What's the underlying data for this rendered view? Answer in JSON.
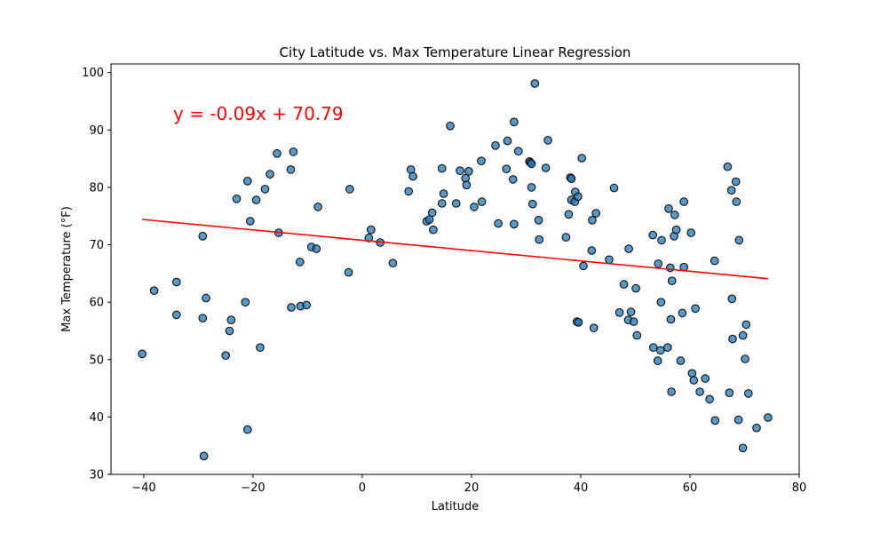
{
  "chart_data": {
    "type": "scatter",
    "title": "City Latitude vs. Max Temperature Linear Regression",
    "xlabel": "Latitude",
    "ylabel": "Max Temperature (°F)",
    "xlim": [
      -46,
      80
    ],
    "ylim": [
      30,
      101.5
    ],
    "xticks": [
      -40,
      -20,
      0,
      20,
      40,
      60,
      80
    ],
    "yticks": [
      30,
      40,
      50,
      60,
      70,
      80,
      90,
      100
    ],
    "grid": false,
    "point_color": "#1f77b4",
    "line_color": "#ff0000",
    "regression": {
      "slope": -0.09,
      "intercept": 70.79,
      "x_range": [
        -40.3,
        74.3
      ]
    },
    "annotation": "y = -0.09x + 70.79",
    "points": [
      [
        -40.3,
        51
      ],
      [
        -38.1,
        62
      ],
      [
        -34.0,
        63.5
      ],
      [
        -34.0,
        57.8
      ],
      [
        -29.2,
        71.5
      ],
      [
        -29.2,
        57.2
      ],
      [
        -28.6,
        60.7
      ],
      [
        -29.0,
        33.2
      ],
      [
        -25.0,
        50.7
      ],
      [
        -24.3,
        55
      ],
      [
        -24.0,
        56.9
      ],
      [
        -23.0,
        78
      ],
      [
        -21.0,
        81.1
      ],
      [
        -21.4,
        60
      ],
      [
        -21.0,
        37.8
      ],
      [
        -20.5,
        74.1
      ],
      [
        -19.4,
        77.8
      ],
      [
        -18.7,
        52.1
      ],
      [
        -17.8,
        79.7
      ],
      [
        -16.9,
        82.3
      ],
      [
        -15.6,
        85.9
      ],
      [
        -15.3,
        72.1
      ],
      [
        -13.1,
        83.1
      ],
      [
        -12.6,
        86.2
      ],
      [
        -13.0,
        59.1
      ],
      [
        -11.4,
        67
      ],
      [
        -11.3,
        59.3
      ],
      [
        -10.2,
        59.5
      ],
      [
        -9.3,
        69.6
      ],
      [
        -8.4,
        69.3
      ],
      [
        -8.1,
        76.6
      ],
      [
        -2.3,
        79.7
      ],
      [
        -2.5,
        65.2
      ],
      [
        1.2,
        71.2
      ],
      [
        1.6,
        72.6
      ],
      [
        3.3,
        70.4
      ],
      [
        5.6,
        66.8
      ],
      [
        8.5,
        79.3
      ],
      [
        8.9,
        83.1
      ],
      [
        9.3,
        81.9
      ],
      [
        11.8,
        74.1
      ],
      [
        12.3,
        74.4
      ],
      [
        12.8,
        75.6
      ],
      [
        13.0,
        72.6
      ],
      [
        14.6,
        77.2
      ],
      [
        14.6,
        83.3
      ],
      [
        14.9,
        78.9
      ],
      [
        16.1,
        90.7
      ],
      [
        17.2,
        77.2
      ],
      [
        17.9,
        82.9
      ],
      [
        18.9,
        81.6
      ],
      [
        19.1,
        80.4
      ],
      [
        19.5,
        82.8
      ],
      [
        20.5,
        76.6
      ],
      [
        21.8,
        84.6
      ],
      [
        21.9,
        77.5
      ],
      [
        24.4,
        87.3
      ],
      [
        24.9,
        73.7
      ],
      [
        26.4,
        83.2
      ],
      [
        26.6,
        88.1
      ],
      [
        27.6,
        81.4
      ],
      [
        27.8,
        91.4
      ],
      [
        27.8,
        73.6
      ],
      [
        28.6,
        86.3
      ],
      [
        30.6,
        84.5
      ],
      [
        30.8,
        84.3
      ],
      [
        31.0,
        84.1
      ],
      [
        31.0,
        80
      ],
      [
        31.2,
        77.1
      ],
      [
        31.6,
        98.1
      ],
      [
        32.3,
        74.3
      ],
      [
        32.4,
        70.9
      ],
      [
        33.6,
        83.4
      ],
      [
        34.0,
        88.2
      ],
      [
        37.3,
        71.3
      ],
      [
        37.8,
        75.3
      ],
      [
        38.1,
        81.7
      ],
      [
        38.3,
        81.5
      ],
      [
        38.3,
        77.8
      ],
      [
        38.9,
        77.5
      ],
      [
        39.0,
        79.2
      ],
      [
        39.3,
        56.6
      ],
      [
        39.5,
        78.4
      ],
      [
        39.6,
        56.5
      ],
      [
        40.2,
        85.1
      ],
      [
        40.5,
        66.3
      ],
      [
        42.0,
        69
      ],
      [
        42.1,
        74.3
      ],
      [
        42.4,
        55.5
      ],
      [
        42.8,
        75.5
      ],
      [
        45.2,
        67.4
      ],
      [
        46.1,
        79.9
      ],
      [
        47.1,
        58.2
      ],
      [
        47.9,
        63.1
      ],
      [
        48.7,
        56.9
      ],
      [
        48.8,
        69.3
      ],
      [
        49.2,
        58.3
      ],
      [
        49.7,
        56.6
      ],
      [
        50.1,
        62.4
      ],
      [
        50.3,
        54.2
      ],
      [
        53.2,
        71.7
      ],
      [
        53.3,
        52.1
      ],
      [
        54.1,
        49.8
      ],
      [
        54.2,
        66.7
      ],
      [
        54.6,
        51.6
      ],
      [
        54.7,
        60
      ],
      [
        54.8,
        70.8
      ],
      [
        55.9,
        52.1
      ],
      [
        56.1,
        76.3
      ],
      [
        56.4,
        66
      ],
      [
        56.5,
        57
      ],
      [
        56.6,
        44.4
      ],
      [
        56.7,
        63.7
      ],
      [
        57.1,
        71.5
      ],
      [
        57.2,
        75.2
      ],
      [
        57.5,
        72.6
      ],
      [
        58.3,
        49.8
      ],
      [
        58.6,
        58.1
      ],
      [
        58.9,
        77.5
      ],
      [
        58.9,
        66.1
      ],
      [
        60.2,
        72.1
      ],
      [
        60.4,
        47.6
      ],
      [
        60.7,
        46.4
      ],
      [
        61.0,
        58.9
      ],
      [
        61.8,
        44.4
      ],
      [
        62.8,
        46.7
      ],
      [
        63.6,
        43.1
      ],
      [
        64.5,
        67.2
      ],
      [
        64.6,
        39.4
      ],
      [
        66.9,
        83.6
      ],
      [
        67.2,
        44.2
      ],
      [
        67.6,
        79.5
      ],
      [
        67.7,
        60.6
      ],
      [
        67.8,
        53.6
      ],
      [
        68.4,
        81
      ],
      [
        68.5,
        77.5
      ],
      [
        68.9,
        39.5
      ],
      [
        69.0,
        70.8
      ],
      [
        69.7,
        54.2
      ],
      [
        69.7,
        34.6
      ],
      [
        70.1,
        50.1
      ],
      [
        70.3,
        56.1
      ],
      [
        70.7,
        44.1
      ],
      [
        72.2,
        38.1
      ],
      [
        74.3,
        39.9
      ]
    ]
  }
}
